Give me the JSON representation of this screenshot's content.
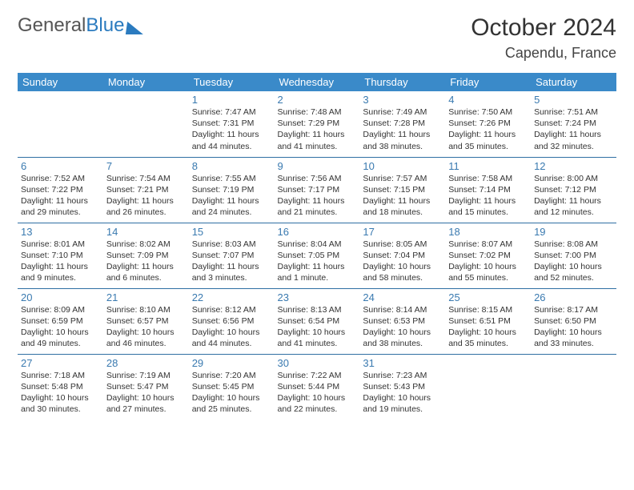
{
  "logo": {
    "part1": "General",
    "part2": "Blue"
  },
  "title": "October 2024",
  "location": "Capendu, France",
  "day_headers": [
    "Sunday",
    "Monday",
    "Tuesday",
    "Wednesday",
    "Thursday",
    "Friday",
    "Saturday"
  ],
  "colors": {
    "header_bg": "#3a8ac9",
    "header_text": "#ffffff",
    "daynum": "#3a7ab0",
    "border": "#2f6fa3",
    "logo_gray": "#555555",
    "logo_blue": "#2b7bbf"
  },
  "weeks": [
    [
      null,
      null,
      {
        "n": "1",
        "sr": "7:47 AM",
        "ss": "7:31 PM",
        "dh": "11",
        "dm": "44"
      },
      {
        "n": "2",
        "sr": "7:48 AM",
        "ss": "7:29 PM",
        "dh": "11",
        "dm": "41"
      },
      {
        "n": "3",
        "sr": "7:49 AM",
        "ss": "7:28 PM",
        "dh": "11",
        "dm": "38"
      },
      {
        "n": "4",
        "sr": "7:50 AM",
        "ss": "7:26 PM",
        "dh": "11",
        "dm": "35"
      },
      {
        "n": "5",
        "sr": "7:51 AM",
        "ss": "7:24 PM",
        "dh": "11",
        "dm": "32"
      }
    ],
    [
      {
        "n": "6",
        "sr": "7:52 AM",
        "ss": "7:22 PM",
        "dh": "11",
        "dm": "29"
      },
      {
        "n": "7",
        "sr": "7:54 AM",
        "ss": "7:21 PM",
        "dh": "11",
        "dm": "26"
      },
      {
        "n": "8",
        "sr": "7:55 AM",
        "ss": "7:19 PM",
        "dh": "11",
        "dm": "24"
      },
      {
        "n": "9",
        "sr": "7:56 AM",
        "ss": "7:17 PM",
        "dh": "11",
        "dm": "21"
      },
      {
        "n": "10",
        "sr": "7:57 AM",
        "ss": "7:15 PM",
        "dh": "11",
        "dm": "18"
      },
      {
        "n": "11",
        "sr": "7:58 AM",
        "ss": "7:14 PM",
        "dh": "11",
        "dm": "15"
      },
      {
        "n": "12",
        "sr": "8:00 AM",
        "ss": "7:12 PM",
        "dh": "11",
        "dm": "12"
      }
    ],
    [
      {
        "n": "13",
        "sr": "8:01 AM",
        "ss": "7:10 PM",
        "dh": "11",
        "dm": "9"
      },
      {
        "n": "14",
        "sr": "8:02 AM",
        "ss": "7:09 PM",
        "dh": "11",
        "dm": "6"
      },
      {
        "n": "15",
        "sr": "8:03 AM",
        "ss": "7:07 PM",
        "dh": "11",
        "dm": "3"
      },
      {
        "n": "16",
        "sr": "8:04 AM",
        "ss": "7:05 PM",
        "dh": "11",
        "dm": "1",
        "singular": true
      },
      {
        "n": "17",
        "sr": "8:05 AM",
        "ss": "7:04 PM",
        "dh": "10",
        "dm": "58"
      },
      {
        "n": "18",
        "sr": "8:07 AM",
        "ss": "7:02 PM",
        "dh": "10",
        "dm": "55"
      },
      {
        "n": "19",
        "sr": "8:08 AM",
        "ss": "7:00 PM",
        "dh": "10",
        "dm": "52"
      }
    ],
    [
      {
        "n": "20",
        "sr": "8:09 AM",
        "ss": "6:59 PM",
        "dh": "10",
        "dm": "49"
      },
      {
        "n": "21",
        "sr": "8:10 AM",
        "ss": "6:57 PM",
        "dh": "10",
        "dm": "46"
      },
      {
        "n": "22",
        "sr": "8:12 AM",
        "ss": "6:56 PM",
        "dh": "10",
        "dm": "44"
      },
      {
        "n": "23",
        "sr": "8:13 AM",
        "ss": "6:54 PM",
        "dh": "10",
        "dm": "41"
      },
      {
        "n": "24",
        "sr": "8:14 AM",
        "ss": "6:53 PM",
        "dh": "10",
        "dm": "38"
      },
      {
        "n": "25",
        "sr": "8:15 AM",
        "ss": "6:51 PM",
        "dh": "10",
        "dm": "35"
      },
      {
        "n": "26",
        "sr": "8:17 AM",
        "ss": "6:50 PM",
        "dh": "10",
        "dm": "33"
      }
    ],
    [
      {
        "n": "27",
        "sr": "7:18 AM",
        "ss": "5:48 PM",
        "dh": "10",
        "dm": "30"
      },
      {
        "n": "28",
        "sr": "7:19 AM",
        "ss": "5:47 PM",
        "dh": "10",
        "dm": "27"
      },
      {
        "n": "29",
        "sr": "7:20 AM",
        "ss": "5:45 PM",
        "dh": "10",
        "dm": "25"
      },
      {
        "n": "30",
        "sr": "7:22 AM",
        "ss": "5:44 PM",
        "dh": "10",
        "dm": "22"
      },
      {
        "n": "31",
        "sr": "7:23 AM",
        "ss": "5:43 PM",
        "dh": "10",
        "dm": "19"
      },
      null,
      null
    ]
  ],
  "labels": {
    "sunrise": "Sunrise:",
    "sunset": "Sunset:",
    "daylight": "Daylight:",
    "hours": "hours",
    "and": "and",
    "minutes": "minutes.",
    "minute": "minute."
  }
}
